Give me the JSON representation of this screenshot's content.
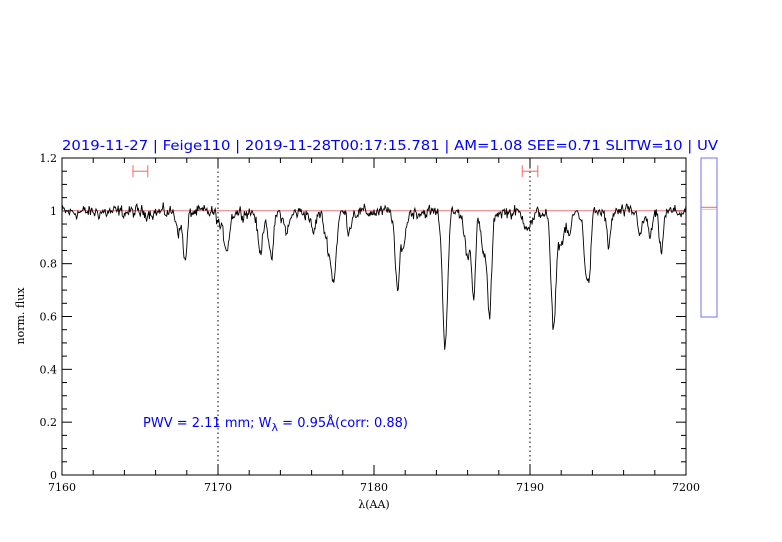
{
  "chart_data": {
    "type": "line",
    "title": "2019-11-27 | Feige110 | 2019-11-28T00:17:15.781 | AM=1.08  SEE=0.71  SLITW=10 | UV",
    "xlabel": "λ(AA)",
    "ylabel": "norm. flux",
    "xlim": [
      7160,
      7200
    ],
    "ylim": [
      0,
      1.2
    ],
    "x_ticks": [
      7160,
      7170,
      7180,
      7190,
      7200
    ],
    "x_minor_step": 2,
    "y_ticks": [
      0,
      0.2,
      0.4,
      0.6,
      0.8,
      1,
      1.2
    ],
    "y_minor_step": 0.05,
    "y_tick_labels": [
      "0",
      "0.2",
      "0.4",
      "0.6",
      "0.8",
      "1",
      "1.2"
    ],
    "grid": false,
    "continuum_level": 1.0,
    "continuum_color": "#e06060",
    "reference_lines_x": [
      7170,
      7190
    ],
    "error_bars": [
      {
        "x_min": 7164.55,
        "x_max": 7165.5,
        "y": 1.15
      },
      {
        "x_min": 7189.5,
        "x_max": 7190.5,
        "y": 1.15
      }
    ],
    "series": [
      {
        "color": "#000000",
        "noise_rms": 0.012,
        "continuum": 0.995,
        "absorption_features": [
          {
            "center": 7167.5,
            "min_flux": 0.93,
            "width": 0.15
          },
          {
            "center": 7167.9,
            "min_flux": 0.81,
            "width": 0.12
          },
          {
            "center": 7170.3,
            "min_flux": 0.93,
            "width": 0.25
          },
          {
            "center": 7170.6,
            "min_flux": 0.9,
            "width": 0.15
          },
          {
            "center": 7172.7,
            "min_flux": 0.84,
            "width": 0.15
          },
          {
            "center": 7173.4,
            "min_flux": 0.81,
            "width": 0.15
          },
          {
            "center": 7174.4,
            "min_flux": 0.93,
            "width": 0.2
          },
          {
            "center": 7176.1,
            "min_flux": 0.92,
            "width": 0.15
          },
          {
            "center": 7177.4,
            "min_flux": 0.75,
            "width": 0.18
          },
          {
            "center": 7177.0,
            "min_flux": 0.9,
            "width": 0.2
          },
          {
            "center": 7178.4,
            "min_flux": 0.93,
            "width": 0.12
          },
          {
            "center": 7181.5,
            "min_flux": 0.69,
            "width": 0.14
          },
          {
            "center": 7181.9,
            "min_flux": 0.88,
            "width": 0.15
          },
          {
            "center": 7184.55,
            "min_flux": 0.5,
            "width": 0.16
          },
          {
            "center": 7186.0,
            "min_flux": 0.84,
            "width": 0.2
          },
          {
            "center": 7186.4,
            "min_flux": 0.7,
            "width": 0.12
          },
          {
            "center": 7187.0,
            "min_flux": 0.84,
            "width": 0.15
          },
          {
            "center": 7187.4,
            "min_flux": 0.6,
            "width": 0.14
          },
          {
            "center": 7189.9,
            "min_flux": 0.95,
            "width": 0.3
          },
          {
            "center": 7191.5,
            "min_flux": 0.56,
            "width": 0.16
          },
          {
            "center": 7192.0,
            "min_flux": 0.88,
            "width": 0.18
          },
          {
            "center": 7192.5,
            "min_flux": 0.91,
            "width": 0.15
          },
          {
            "center": 7193.6,
            "min_flux": 0.8,
            "width": 0.16
          },
          {
            "center": 7193.8,
            "min_flux": 0.82,
            "width": 0.12
          },
          {
            "center": 7195.05,
            "min_flux": 0.86,
            "width": 0.12
          },
          {
            "center": 7197.1,
            "min_flux": 0.92,
            "width": 0.15
          },
          {
            "center": 7197.7,
            "min_flux": 0.91,
            "width": 0.15
          },
          {
            "center": 7198.4,
            "min_flux": 0.85,
            "width": 0.13
          }
        ]
      }
    ],
    "annotation": {
      "prefix": "PWV = 2.11 mm; W",
      "subscript": "λ",
      "suffix": " = 0.95Å(corr: 0.88)"
    },
    "side_panel": {
      "border_color": "#7070ff",
      "marker_color": "#ff6060",
      "marker_level": 0.69
    }
  }
}
